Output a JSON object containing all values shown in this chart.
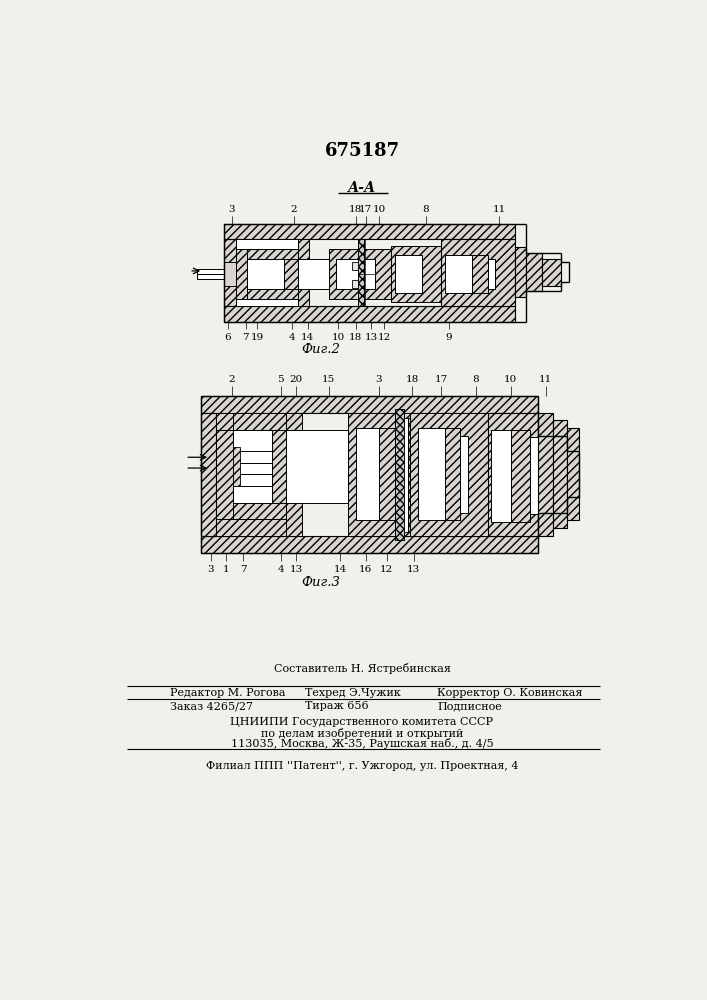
{
  "patent_number": "675187",
  "fig2_label": "Фиг.2",
  "fig3_label": "Фиг.3",
  "section_label": "А-А",
  "bg_color": "#f2f0eb",
  "hatch_color": "#222222",
  "line_color": "#000000",
  "footer_line1": "Составитель Н. Ястребинская",
  "footer_line2_left": "Редактор М. Рогова",
  "footer_line2_mid": "Техред Э.Чужик",
  "footer_line2_right": "Корректор О. Ковинская",
  "footer_line3a": "Заказ 4265/27",
  "footer_line3b": "Тираж 656",
  "footer_line3c": "Подписное",
  "footer_line4": "ЦНИИПИ Государственного комитета СССР",
  "footer_line5": "по делам изобретений и открытий",
  "footer_line6": "113035, Москва, Ж-35, Раушская наб., д. 4/5",
  "footer_line7": "Филиал ППП ''Патент'', г. Ужгород, ул. Проектная, 4"
}
